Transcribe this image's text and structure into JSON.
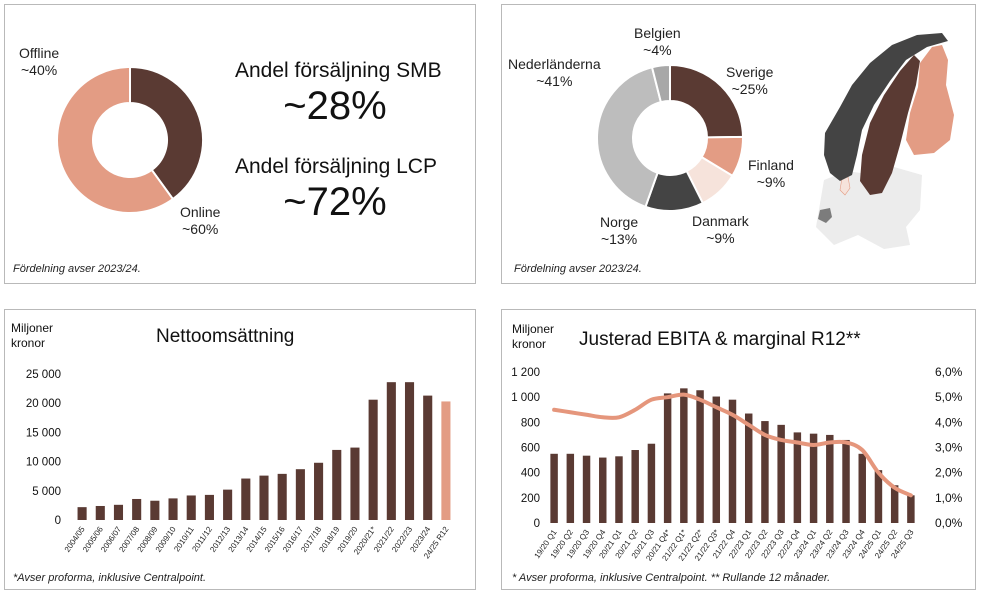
{
  "colors": {
    "dark": "#5a3a33",
    "salmon": "#e39c84",
    "light": "#f6e3db",
    "charcoal": "#444444",
    "gray": "#bdbdbd",
    "darkgray": "#a8a8a8",
    "line": "#e5967c"
  },
  "sales_channel": {
    "offline_label": "Offline",
    "offline_value": "~40%",
    "online_label": "Online",
    "online_value": "~60%",
    "smb_heading": "Andel försäljning SMB",
    "smb_value": "~28%",
    "lcp_heading": "Andel försäljning LCP",
    "lcp_value": "~72%",
    "footnote": "Fördelning avser 2023/24."
  },
  "country_split": {
    "belgien_label": "Belgien",
    "belgien_value": "~4%",
    "nederlanderna_label": "Nederländerna",
    "nederlanderna_value": "~41%",
    "sverige_label": "Sverige",
    "sverige_value": "~25%",
    "finland_label": "Finland",
    "finland_value": "~9%",
    "danmark_label": "Danmark",
    "danmark_value": "~9%",
    "norge_label": "Norge",
    "norge_value": "~13%",
    "footnote": "Fördelning avser 2023/24."
  },
  "net_sales": {
    "unit_line1": "Miljoner",
    "unit_line2": "kronor",
    "footnote": "*Avser proforma, inklusive Centralpoint."
  },
  "ebita": {
    "unit_line1": "Miljoner",
    "unit_line2": "kronor",
    "footnote": "* Avser proforma, inklusive Centralpoint. ** Rullande 12 månader."
  },
  "chart_data": [
    {
      "type": "pie",
      "title": "",
      "slices": [
        {
          "label": "Offline",
          "value": 40,
          "color": "#5a3a33"
        },
        {
          "label": "Online",
          "value": 60,
          "color": "#e39c84"
        }
      ]
    },
    {
      "type": "pie",
      "title": "",
      "slices": [
        {
          "label": "Sverige",
          "value": 25,
          "color": "#5a3a33"
        },
        {
          "label": "Finland",
          "value": 9,
          "color": "#e39c84"
        },
        {
          "label": "Danmark",
          "value": 9,
          "color": "#f6e3db"
        },
        {
          "label": "Norge",
          "value": 13,
          "color": "#444444"
        },
        {
          "label": "Nederländerna",
          "value": 41,
          "color": "#bdbdbd"
        },
        {
          "label": "Belgien",
          "value": 4,
          "color": "#a8a8a8"
        }
      ]
    },
    {
      "type": "bar",
      "title": "Nettoomsättning",
      "ylabel": "Miljoner kronor",
      "ylim": [
        0,
        25000
      ],
      "yticks": [
        0,
        5000,
        10000,
        15000,
        20000,
        25000
      ],
      "ytick_labels": [
        "0",
        "5 000",
        "10 000",
        "15 000",
        "20 000",
        "25 000"
      ],
      "categories": [
        "2004/05",
        "2005/06",
        "2006/07",
        "2007/08",
        "2008/09",
        "2009/10",
        "2010/11",
        "2011/12",
        "2012/13",
        "2013/14",
        "2014/15",
        "2015/16",
        "2016/17",
        "2017/18",
        "2018/19",
        "2019/20",
        "2020/21*",
        "2021/22",
        "2022/23",
        "2023/24",
        "24/25 R12"
      ],
      "values": [
        2200,
        2400,
        2600,
        3600,
        3300,
        3700,
        4200,
        4300,
        5200,
        7100,
        7600,
        7900,
        8700,
        9800,
        12000,
        12400,
        20600,
        23600,
        23600,
        21300,
        20300
      ],
      "highlight_last": true
    },
    {
      "type": "bar",
      "title": "Justerad EBITA & marginal R12**",
      "ylabel": "Miljoner kronor",
      "ylim": [
        0,
        1200
      ],
      "yticks": [
        0,
        200,
        400,
        600,
        800,
        1000,
        1200
      ],
      "ytick_labels": [
        "0",
        "200",
        "400",
        "600",
        "800",
        "1 000",
        "1 200"
      ],
      "y2lim": [
        0,
        6
      ],
      "y2ticks": [
        0,
        1,
        2,
        3,
        4,
        5,
        6
      ],
      "y2tick_labels": [
        "0,0%",
        "1,0%",
        "2,0%",
        "3,0%",
        "4,0%",
        "5,0%",
        "6,0%"
      ],
      "categories": [
        "19/20 Q1",
        "19/20 Q2",
        "19/20 Q3",
        "19/20 Q4",
        "20/21 Q1",
        "20/21 Q2",
        "20/21 Q3",
        "20/21 Q4*",
        "21/22 Q1*",
        "21/22 Q2*",
        "21/22 Q3*",
        "21/22 Q4",
        "22/23 Q1",
        "22/23 Q2",
        "22/23 Q3",
        "22/23 Q4",
        "23/24 Q1",
        "23/24 Q2",
        "23/24 Q3",
        "23/24 Q4",
        "24/25 Q1",
        "24/25 Q2",
        "24/25 Q3"
      ],
      "series": [
        {
          "name": "Justerad EBITA",
          "kind": "bar",
          "values": [
            550,
            550,
            535,
            520,
            530,
            580,
            630,
            1030,
            1070,
            1055,
            1005,
            980,
            870,
            810,
            780,
            720,
            710,
            700,
            660,
            550,
            420,
            300,
            220
          ]
        },
        {
          "name": "Marginal R12",
          "kind": "line",
          "axis": "right",
          "values": [
            4.5,
            4.4,
            4.3,
            4.2,
            4.2,
            4.5,
            4.9,
            5.0,
            5.1,
            4.9,
            4.6,
            4.3,
            3.9,
            3.5,
            3.3,
            3.2,
            3.1,
            3.2,
            3.2,
            2.9,
            2.0,
            1.4,
            1.1
          ]
        }
      ]
    }
  ]
}
